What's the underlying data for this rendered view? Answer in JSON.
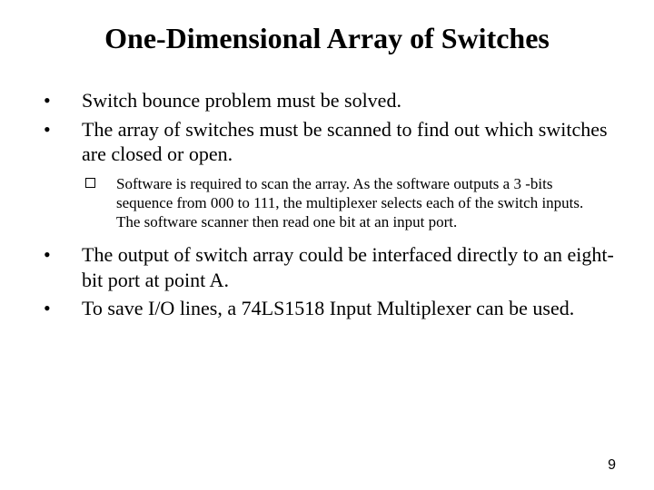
{
  "title": "One-Dimensional Array of Switches",
  "bullets": [
    {
      "text": "Switch bounce problem must be solved."
    },
    {
      "text": "The array of switches must be scanned to find out which switches are closed or open."
    }
  ],
  "sub_bullet": {
    "text": "Software is required to scan the array. As the software outputs a 3 -bits sequence from 000 to 111, the multiplexer selects each of the switch inputs. The software scanner then read one bit at an input port."
  },
  "bullets2": [
    {
      "text": "The output of switch array could be interfaced directly to an eight-bit port at point A."
    },
    {
      "text": "To save I/O lines, a 74LS1518 Input Multiplexer can be used."
    }
  ],
  "page_number": "9",
  "colors": {
    "background": "#ffffff",
    "text": "#000000"
  },
  "fonts": {
    "title_size": 32,
    "body_size": 22,
    "sub_size": 17,
    "page_size": 16
  }
}
